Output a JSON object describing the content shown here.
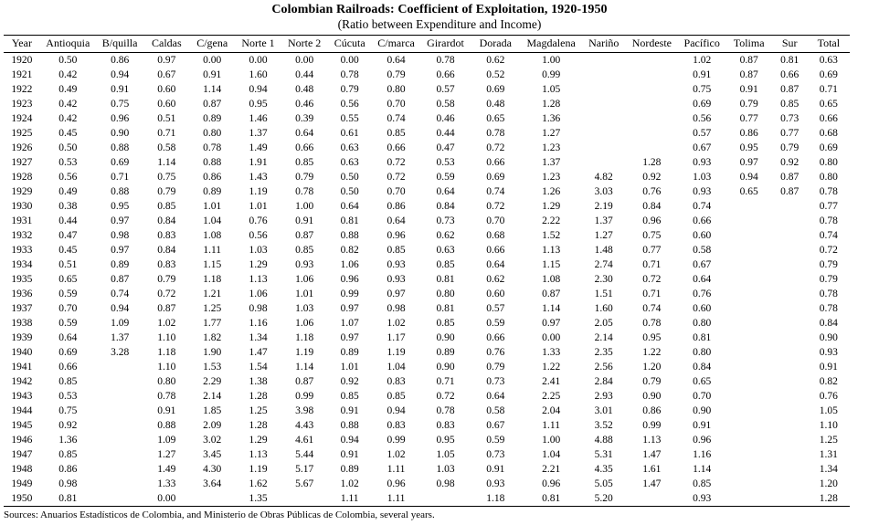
{
  "title": "Colombian Railroads: Coefficient of Exploitation, 1920-1950",
  "subtitle": "(Ratio between Expenditure and Income)",
  "footer": "Sources: Anuarios Estadísticos de Colombia, and Ministerio de Obras Públicas de Colombia, several years.",
  "table": {
    "columns": [
      "Year",
      "Antioquia",
      "B/quilla",
      "Caldas",
      "C/gena",
      "Norte 1",
      "Norte 2",
      "Cúcuta",
      "C/marca",
      "Girardot",
      "Dorada",
      "Magdalena",
      "Nariño",
      "Nordeste",
      "Pacífico",
      "Tolima",
      "Sur",
      "Total"
    ],
    "rows": [
      [
        "1920",
        "0.50",
        "0.86",
        "0.97",
        "0.00",
        "0.00",
        "0.00",
        "0.00",
        "0.64",
        "0.78",
        "0.62",
        "1.00",
        "",
        "",
        "1.02",
        "0.87",
        "0.81",
        "0.63"
      ],
      [
        "1921",
        "0.42",
        "0.94",
        "0.67",
        "0.91",
        "1.60",
        "0.44",
        "0.78",
        "0.79",
        "0.66",
        "0.52",
        "0.99",
        "",
        "",
        "0.91",
        "0.87",
        "0.66",
        "0.69"
      ],
      [
        "1922",
        "0.49",
        "0.91",
        "0.60",
        "1.14",
        "0.94",
        "0.48",
        "0.79",
        "0.80",
        "0.57",
        "0.69",
        "1.05",
        "",
        "",
        "0.75",
        "0.91",
        "0.87",
        "0.71"
      ],
      [
        "1923",
        "0.42",
        "0.75",
        "0.60",
        "0.87",
        "0.95",
        "0.46",
        "0.56",
        "0.70",
        "0.58",
        "0.48",
        "1.28",
        "",
        "",
        "0.69",
        "0.79",
        "0.85",
        "0.65"
      ],
      [
        "1924",
        "0.42",
        "0.96",
        "0.51",
        "0.89",
        "1.46",
        "0.39",
        "0.55",
        "0.74",
        "0.46",
        "0.65",
        "1.36",
        "",
        "",
        "0.56",
        "0.77",
        "0.73",
        "0.66"
      ],
      [
        "1925",
        "0.45",
        "0.90",
        "0.71",
        "0.80",
        "1.37",
        "0.64",
        "0.61",
        "0.85",
        "0.44",
        "0.78",
        "1.27",
        "",
        "",
        "0.57",
        "0.86",
        "0.77",
        "0.68"
      ],
      [
        "1926",
        "0.50",
        "0.88",
        "0.58",
        "0.78",
        "1.49",
        "0.66",
        "0.63",
        "0.66",
        "0.47",
        "0.72",
        "1.23",
        "",
        "",
        "0.67",
        "0.95",
        "0.79",
        "0.69"
      ],
      [
        "1927",
        "0.53",
        "0.69",
        "1.14",
        "0.88",
        "1.91",
        "0.85",
        "0.63",
        "0.72",
        "0.53",
        "0.66",
        "1.37",
        "",
        "1.28",
        "0.93",
        "0.97",
        "0.92",
        "0.80"
      ],
      [
        "1928",
        "0.56",
        "0.71",
        "0.75",
        "0.86",
        "1.43",
        "0.79",
        "0.50",
        "0.72",
        "0.59",
        "0.69",
        "1.23",
        "4.82",
        "0.92",
        "1.03",
        "0.94",
        "0.87",
        "0.80"
      ],
      [
        "1929",
        "0.49",
        "0.88",
        "0.79",
        "0.89",
        "1.19",
        "0.78",
        "0.50",
        "0.70",
        "0.64",
        "0.74",
        "1.26",
        "3.03",
        "0.76",
        "0.93",
        "0.65",
        "0.87",
        "0.78"
      ],
      [
        "1930",
        "0.38",
        "0.95",
        "0.85",
        "1.01",
        "1.01",
        "1.00",
        "0.64",
        "0.86",
        "0.84",
        "0.72",
        "1.29",
        "2.19",
        "0.84",
        "0.74",
        "",
        "",
        "0.77"
      ],
      [
        "1931",
        "0.44",
        "0.97",
        "0.84",
        "1.04",
        "0.76",
        "0.91",
        "0.81",
        "0.64",
        "0.73",
        "0.70",
        "2.22",
        "1.37",
        "0.96",
        "0.66",
        "",
        "",
        "0.78"
      ],
      [
        "1932",
        "0.47",
        "0.98",
        "0.83",
        "1.08",
        "0.56",
        "0.87",
        "0.88",
        "0.96",
        "0.62",
        "0.68",
        "1.52",
        "1.27",
        "0.75",
        "0.60",
        "",
        "",
        "0.74"
      ],
      [
        "1933",
        "0.45",
        "0.97",
        "0.84",
        "1.11",
        "1.03",
        "0.85",
        "0.82",
        "0.85",
        "0.63",
        "0.66",
        "1.13",
        "1.48",
        "0.77",
        "0.58",
        "",
        "",
        "0.72"
      ],
      [
        "1934",
        "0.51",
        "0.89",
        "0.83",
        "1.15",
        "1.29",
        "0.93",
        "1.06",
        "0.93",
        "0.85",
        "0.64",
        "1.15",
        "2.74",
        "0.71",
        "0.67",
        "",
        "",
        "0.79"
      ],
      [
        "1935",
        "0.65",
        "0.87",
        "0.79",
        "1.18",
        "1.13",
        "1.06",
        "0.96",
        "0.93",
        "0.81",
        "0.62",
        "1.08",
        "2.30",
        "0.72",
        "0.64",
        "",
        "",
        "0.79"
      ],
      [
        "1936",
        "0.59",
        "0.74",
        "0.72",
        "1.21",
        "1.06",
        "1.01",
        "0.99",
        "0.97",
        "0.80",
        "0.60",
        "0.87",
        "1.51",
        "0.71",
        "0.76",
        "",
        "",
        "0.78"
      ],
      [
        "1937",
        "0.70",
        "0.94",
        "0.87",
        "1.25",
        "0.98",
        "1.03",
        "0.97",
        "0.98",
        "0.81",
        "0.57",
        "1.14",
        "1.60",
        "0.74",
        "0.60",
        "",
        "",
        "0.78"
      ],
      [
        "1938",
        "0.59",
        "1.09",
        "1.02",
        "1.77",
        "1.16",
        "1.06",
        "1.07",
        "1.02",
        "0.85",
        "0.59",
        "0.97",
        "2.05",
        "0.78",
        "0.80",
        "",
        "",
        "0.84"
      ],
      [
        "1939",
        "0.64",
        "1.37",
        "1.10",
        "1.82",
        "1.34",
        "1.18",
        "0.97",
        "1.17",
        "0.90",
        "0.66",
        "0.00",
        "2.14",
        "0.95",
        "0.81",
        "",
        "",
        "0.90"
      ],
      [
        "1940",
        "0.69",
        "3.28",
        "1.18",
        "1.90",
        "1.47",
        "1.19",
        "0.89",
        "1.19",
        "0.89",
        "0.76",
        "1.33",
        "2.35",
        "1.22",
        "0.80",
        "",
        "",
        "0.93"
      ],
      [
        "1941",
        "0.66",
        "",
        "1.10",
        "1.53",
        "1.54",
        "1.14",
        "1.01",
        "1.04",
        "0.90",
        "0.79",
        "1.22",
        "2.56",
        "1.20",
        "0.84",
        "",
        "",
        "0.91"
      ],
      [
        "1942",
        "0.85",
        "",
        "0.80",
        "2.29",
        "1.38",
        "0.87",
        "0.92",
        "0.83",
        "0.71",
        "0.73",
        "2.41",
        "2.84",
        "0.79",
        "0.65",
        "",
        "",
        "0.82"
      ],
      [
        "1943",
        "0.53",
        "",
        "0.78",
        "2.14",
        "1.28",
        "0.99",
        "0.85",
        "0.85",
        "0.72",
        "0.64",
        "2.25",
        "2.93",
        "0.90",
        "0.70",
        "",
        "",
        "0.76"
      ],
      [
        "1944",
        "0.75",
        "",
        "0.91",
        "1.85",
        "1.25",
        "3.98",
        "0.91",
        "0.94",
        "0.78",
        "0.58",
        "2.04",
        "3.01",
        "0.86",
        "0.90",
        "",
        "",
        "1.05"
      ],
      [
        "1945",
        "0.92",
        "",
        "0.88",
        "2.09",
        "1.28",
        "4.43",
        "0.88",
        "0.83",
        "0.83",
        "0.67",
        "1.11",
        "3.52",
        "0.99",
        "0.91",
        "",
        "",
        "1.10"
      ],
      [
        "1946",
        "1.36",
        "",
        "1.09",
        "3.02",
        "1.29",
        "4.61",
        "0.94",
        "0.99",
        "0.95",
        "0.59",
        "1.00",
        "4.88",
        "1.13",
        "0.96",
        "",
        "",
        "1.25"
      ],
      [
        "1947",
        "0.85",
        "",
        "1.27",
        "3.45",
        "1.13",
        "5.44",
        "0.91",
        "1.02",
        "1.05",
        "0.73",
        "1.04",
        "5.31",
        "1.47",
        "1.16",
        "",
        "",
        "1.31"
      ],
      [
        "1948",
        "0.86",
        "",
        "1.49",
        "4.30",
        "1.19",
        "5.17",
        "0.89",
        "1.11",
        "1.03",
        "0.91",
        "2.21",
        "4.35",
        "1.61",
        "1.14",
        "",
        "",
        "1.34"
      ],
      [
        "1949",
        "0.98",
        "",
        "1.33",
        "3.64",
        "1.62",
        "5.67",
        "1.02",
        "0.96",
        "0.98",
        "0.93",
        "0.96",
        "5.05",
        "1.47",
        "0.85",
        "",
        "",
        "1.20"
      ],
      [
        "1950",
        "0.81",
        "",
        "0.00",
        "",
        "1.35",
        "",
        "1.11",
        "1.11",
        "",
        "1.18",
        "0.81",
        "5.20",
        "",
        "0.93",
        "",
        "",
        "1.28"
      ]
    ]
  }
}
